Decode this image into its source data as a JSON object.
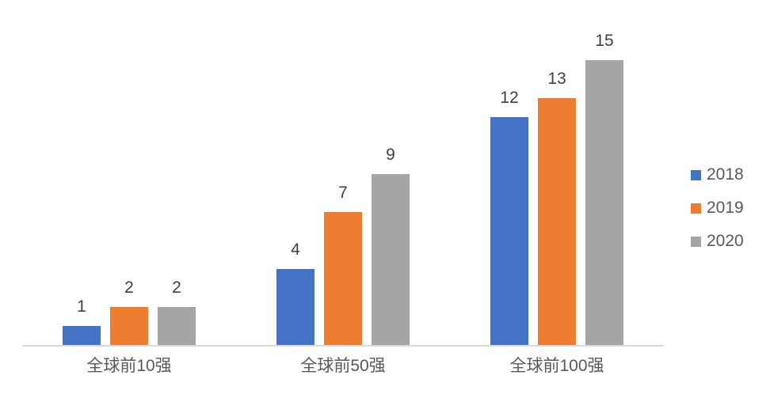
{
  "chart_data": {
    "type": "bar",
    "title": "",
    "xlabel": "",
    "ylabel": "",
    "categories": [
      "全球前10强",
      "全球前50强",
      "全球前100强"
    ],
    "series": [
      {
        "name": "2018",
        "color": "#4472C4",
        "values": [
          1,
          4,
          12
        ]
      },
      {
        "name": "2019",
        "color": "#ED7D31",
        "values": [
          2,
          7,
          13
        ]
      },
      {
        "name": "2020",
        "color": "#A5A5A5",
        "values": [
          2,
          9,
          15
        ]
      }
    ],
    "ylim": [
      0,
      15
    ],
    "grid": false,
    "data_labels": true,
    "legend_position": "right"
  },
  "colors": {
    "background": "#FFFFFF",
    "axis_line": "#D9D9D9",
    "data_label_text": "#404040",
    "category_text": "#595959",
    "legend_text": "#595959"
  }
}
